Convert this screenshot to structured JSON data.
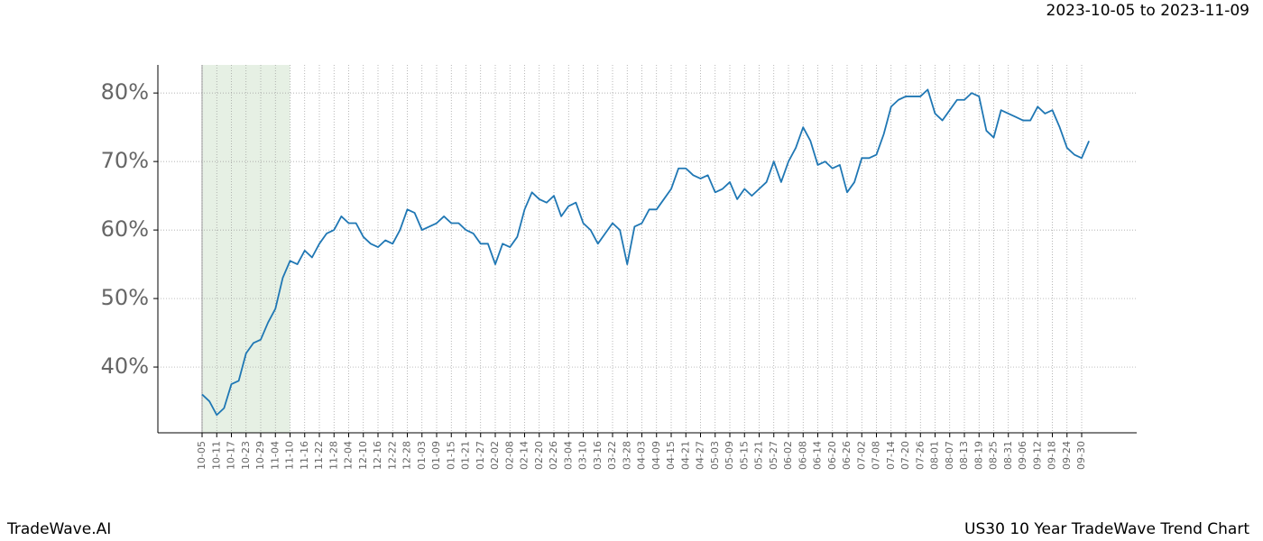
{
  "chart_data": {
    "type": "line",
    "title": "US30 10 Year TradeWave Trend Chart",
    "date_range": "2023-10-05 to 2023-11-09",
    "brand": "TradeWave.AI",
    "shade": [
      "10-05",
      "11-10"
    ],
    "shade_color": "#e6f0e4",
    "grid": true,
    "ylim": [
      30.4,
      84.1
    ],
    "yticks": [
      {
        "value": 40,
        "label": "40%"
      },
      {
        "value": 50,
        "label": "50%"
      },
      {
        "value": 60,
        "label": "60%"
      },
      {
        "value": 70,
        "label": "70%"
      },
      {
        "value": 80,
        "label": "80%"
      }
    ],
    "categories": [
      "10-05",
      null,
      "10-11",
      null,
      "10-17",
      null,
      "10-23",
      null,
      "10-29",
      null,
      "11-04",
      null,
      "11-10",
      null,
      "11-16",
      null,
      "11-22",
      null,
      "11-28",
      null,
      "12-04",
      null,
      "12-10",
      null,
      "12-16",
      null,
      "12-22",
      null,
      "12-28",
      null,
      "01-03",
      null,
      "01-09",
      null,
      "01-15",
      null,
      "01-21",
      null,
      "01-27",
      null,
      "02-02",
      null,
      "02-08",
      null,
      "02-14",
      null,
      "02-20",
      null,
      "02-26",
      null,
      "03-04",
      null,
      "03-10",
      null,
      "03-16",
      null,
      "03-22",
      null,
      "03-28",
      null,
      "04-03",
      null,
      "04-09",
      null,
      "04-15",
      null,
      "04-21",
      null,
      "04-27",
      null,
      "05-03",
      null,
      "05-09",
      null,
      "05-15",
      null,
      "05-21",
      null,
      "05-27",
      null,
      "06-02",
      null,
      "06-08",
      null,
      "06-14",
      null,
      "06-20",
      null,
      "06-26",
      null,
      "07-02",
      null,
      "07-08",
      null,
      "07-14",
      null,
      "07-20",
      null,
      "07-26",
      null,
      "08-01",
      null,
      "08-07",
      null,
      "08-13",
      null,
      "08-19",
      null,
      "08-25",
      null,
      "08-31",
      null,
      "09-06",
      null,
      "09-12",
      null,
      "09-18",
      null,
      "09-24",
      null,
      "09-30",
      null
    ],
    "series": [
      {
        "name": "US30",
        "color": "#1f77b4",
        "values": [
          36,
          35,
          33,
          34,
          37.5,
          38,
          42,
          43.5,
          44,
          46.5,
          48.5,
          53,
          55.5,
          55,
          57,
          56,
          58,
          59.5,
          60,
          62,
          61,
          61,
          59,
          58,
          57.5,
          58.5,
          58,
          60,
          63,
          62.5,
          60,
          60.5,
          61,
          62,
          61,
          61,
          60,
          59.5,
          58,
          58,
          55,
          58,
          57.5,
          59,
          63,
          65.5,
          64.5,
          64,
          65,
          62,
          63.5,
          64,
          61,
          60,
          58,
          59.5,
          61,
          60,
          55,
          60.5,
          61,
          63,
          63,
          64.5,
          66,
          69,
          69,
          68,
          67.5,
          68,
          65.5,
          66,
          67,
          64.5,
          66,
          65,
          66,
          67,
          70,
          67,
          70,
          72,
          75,
          73,
          69.5,
          70,
          69,
          69.5,
          65.5,
          67,
          70.5,
          70.5,
          71,
          74,
          78,
          79,
          79.5,
          79.5,
          79.5,
          80.5,
          77,
          76,
          77.5,
          79,
          79,
          80,
          79.5,
          74.5,
          73.5,
          77.5,
          77,
          76.5,
          76,
          76,
          78,
          77,
          77.5,
          75,
          72,
          71,
          70.5,
          73
        ]
      }
    ]
  }
}
